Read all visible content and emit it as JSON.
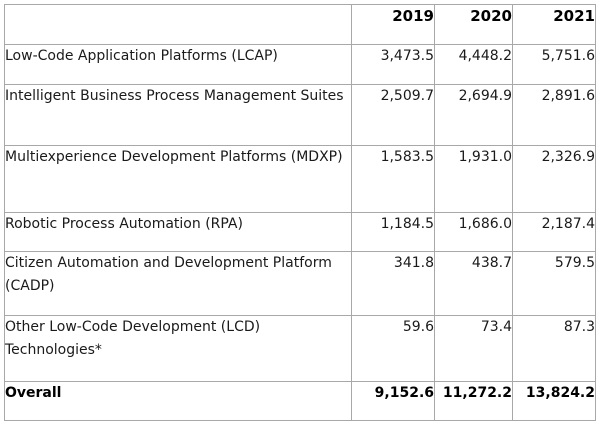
{
  "table": {
    "headers": [
      "",
      "2019",
      "2020",
      "2021"
    ],
    "rows": [
      {
        "label": "Low-Code Application Platforms (LCAP)",
        "values": [
          "3,473.5",
          "4,448.2",
          "5,751.6"
        ]
      },
      {
        "label": "Intelligent Business Process Management Suites",
        "values": [
          "2,509.7",
          "2,694.9",
          "2,891.6"
        ]
      },
      {
        "label": "Multiexperience Development Platforms (MDXP)",
        "values": [
          "1,583.5",
          "1,931.0",
          "2,326.9"
        ]
      },
      {
        "label": "Robotic Process Automation (RPA)",
        "values": [
          "1,184.5",
          "1,686.0",
          "2,187.4"
        ]
      },
      {
        "label": "Citizen Automation and Development Platform (CADP)",
        "values": [
          "341.8",
          "438.7",
          "579.5"
        ]
      },
      {
        "label": "Other Low-Code Development (LCD) Technologies*",
        "values": [
          "59.6",
          "73.4",
          "87.3"
        ]
      }
    ],
    "total": {
      "label": "Overall",
      "values": [
        "9,152.6",
        "11,272.2",
        "13,824.2"
      ]
    }
  }
}
